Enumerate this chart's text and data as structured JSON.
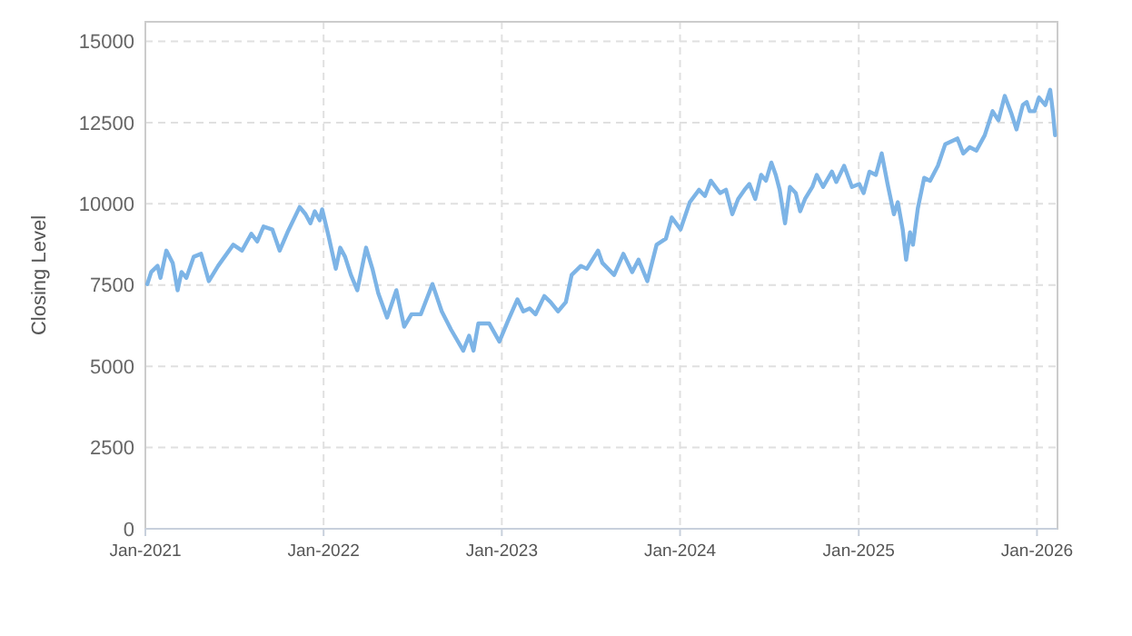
{
  "chart_data": {
    "type": "line",
    "ylabel": "Closing Level",
    "color": "#7db4e6",
    "grid": true,
    "line_style": "solid",
    "marker": "none",
    "xlim": [
      "2021-01-01",
      "2026-02-12"
    ],
    "ylim": [
      0,
      15600
    ],
    "yticks": [
      0,
      2500,
      5000,
      7500,
      10000,
      12500,
      15000
    ],
    "xticks": [
      {
        "value": "2021-01-01",
        "label": "Jan-2021"
      },
      {
        "value": "2022-01-01",
        "label": "Jan-2022"
      },
      {
        "value": "2023-01-01",
        "label": "Jan-2023"
      },
      {
        "value": "2024-01-01",
        "label": "Jan-2024"
      },
      {
        "value": "2025-01-01",
        "label": "Jan-2025"
      },
      {
        "value": "2026-01-01",
        "label": "Jan-2026"
      }
    ],
    "x": [
      "2021-01-05",
      "2021-01-13",
      "2021-01-26",
      "2021-02-01",
      "2021-02-13",
      "2021-02-26",
      "2021-03-08",
      "2021-03-16",
      "2021-03-26",
      "2021-04-10",
      "2021-04-25",
      "2021-05-11",
      "2021-05-30",
      "2021-06-30",
      "2021-07-18",
      "2021-08-06",
      "2021-08-18",
      "2021-08-31",
      "2021-09-18",
      "2021-10-03",
      "2021-10-19",
      "2021-11-13",
      "2021-11-25",
      "2021-12-05",
      "2021-12-14",
      "2021-12-24",
      "2021-12-29",
      "2022-01-11",
      "2022-01-26",
      "2022-02-04",
      "2022-02-14",
      "2022-02-26",
      "2022-03-11",
      "2022-03-29",
      "2022-04-11",
      "2022-04-23",
      "2022-05-11",
      "2022-05-30",
      "2022-06-15",
      "2022-06-30",
      "2022-07-19",
      "2022-08-12",
      "2022-08-31",
      "2022-09-19",
      "2022-10-14",
      "2022-10-26",
      "2022-11-04",
      "2022-11-14",
      "2022-12-06",
      "2022-12-27",
      "2023-01-14",
      "2023-02-02",
      "2023-02-14",
      "2023-02-27",
      "2023-03-11",
      "2023-03-29",
      "2023-04-11",
      "2023-04-26",
      "2023-05-12",
      "2023-05-24",
      "2023-06-12",
      "2023-06-24",
      "2023-07-17",
      "2023-07-26",
      "2023-08-19",
      "2023-09-07",
      "2023-09-25",
      "2023-10-08",
      "2023-10-26",
      "2023-11-14",
      "2023-12-03",
      "2023-12-15",
      "2024-01-02",
      "2024-01-21",
      "2024-02-09",
      "2024-02-21",
      "2024-03-04",
      "2024-03-23",
      "2024-04-04",
      "2024-04-17",
      "2024-04-29",
      "2024-05-12",
      "2024-05-22",
      "2024-06-03",
      "2024-06-15",
      "2024-06-25",
      "2024-07-06",
      "2024-07-15",
      "2024-07-23",
      "2024-08-03",
      "2024-08-13",
      "2024-08-25",
      "2024-09-03",
      "2024-09-13",
      "2024-09-28",
      "2024-10-07",
      "2024-10-20",
      "2024-11-07",
      "2024-11-16",
      "2024-12-02",
      "2024-12-18",
      "2025-01-02",
      "2025-01-11",
      "2025-01-23",
      "2025-02-05",
      "2025-02-17",
      "2025-03-01",
      "2025-03-14",
      "2025-03-22",
      "2025-04-01",
      "2025-04-08",
      "2025-04-16",
      "2025-04-22",
      "2025-05-02",
      "2025-05-15",
      "2025-05-27",
      "2025-06-12",
      "2025-06-27",
      "2025-07-22",
      "2025-08-03",
      "2025-08-16",
      "2025-08-30",
      "2025-09-16",
      "2025-10-02",
      "2025-10-14",
      "2025-10-27",
      "2025-11-10",
      "2025-11-20",
      "2025-12-03",
      "2025-12-11",
      "2025-12-17",
      "2025-12-27",
      "2026-01-05",
      "2026-01-18",
      "2026-01-28",
      "2026-02-03",
      "2026-02-07"
    ],
    "values": [
      7530,
      7900,
      8090,
      7720,
      8560,
      8180,
      7340,
      7900,
      7720,
      8370,
      8460,
      7620,
      8090,
      8740,
      8560,
      9080,
      8840,
      9300,
      9210,
      8560,
      9120,
      9900,
      9680,
      9400,
      9770,
      9490,
      9830,
      9020,
      8000,
      8650,
      8370,
      7810,
      7340,
      8650,
      8000,
      7250,
      6500,
      7340,
      6220,
      6600,
      6600,
      7530,
      6690,
      6130,
      5480,
      5940,
      5480,
      6320,
      6320,
      5760,
      6410,
      7060,
      6690,
      6780,
      6600,
      7160,
      6970,
      6690,
      6970,
      7810,
      8090,
      8000,
      8560,
      8180,
      7810,
      8460,
      7900,
      8280,
      7620,
      8740,
      8930,
      9580,
      9210,
      10050,
      10430,
      10240,
      10710,
      10330,
      10430,
      9680,
      10150,
      10430,
      10610,
      10150,
      10890,
      10710,
      11270,
      10890,
      10430,
      9400,
      10520,
      10330,
      9770,
      10150,
      10520,
      10890,
      10520,
      10990,
      10670,
      11170,
      10520,
      10610,
      10330,
      10990,
      10890,
      11550,
      10610,
      9680,
      10050,
      9210,
      8280,
      9120,
      8740,
      9860,
      10800,
      10710,
      11170,
      11830,
      12010,
      11550,
      11740,
      11640,
      12110,
      12850,
      12570,
      13320,
      12760,
      12290,
      13040,
      13130,
      12850,
      12850,
      13270,
      13040,
      13510,
      12760,
      12110
    ]
  }
}
